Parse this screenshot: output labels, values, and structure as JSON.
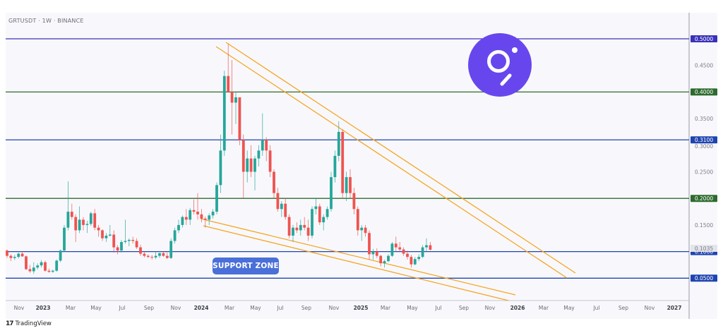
{
  "header": {
    "title": "GRTUSDT · 1W · BINANCE"
  },
  "annotation": {
    "support_zone_label": "SUPPORT ZONE"
  },
  "footer": {
    "brand_mark": "17",
    "brand_name": "TradingView"
  },
  "colors": {
    "up": "#26a69a",
    "down": "#ef5350",
    "level_purple": "#3a32b8",
    "level_green": "#2e6b2e",
    "level_blue": "#1f44b0",
    "trendline": "#f5a623",
    "logo_bg": "#6747ed",
    "current_price_tag": "#e4e5ea"
  },
  "chart_data": {
    "type": "candlestick",
    "title": "GRTUSDT · 1W · BINANCE",
    "xlabel": "",
    "ylabel": "",
    "ylim": [
      0.0,
      0.52
    ],
    "y_ticks": [
      "0.4500",
      "0.3500",
      "0.3000",
      "0.2500",
      "0.1500"
    ],
    "x_ticks": [
      "Nov",
      "2023",
      "Mar",
      "May",
      "Jul",
      "Sep",
      "Nov",
      "2024",
      "Mar",
      "May",
      "Jul",
      "Sep",
      "Nov",
      "2025",
      "Mar",
      "May",
      "Jul",
      "Sep",
      "Nov",
      "2026",
      "Mar",
      "May",
      "Jul",
      "Sep",
      "Nov",
      "2027"
    ],
    "horizontal_levels": [
      {
        "price": 0.5,
        "label": "0.5000",
        "color": "#3a32b8"
      },
      {
        "price": 0.4,
        "label": "0.4000",
        "color": "#2e6b2e"
      },
      {
        "price": 0.31,
        "label": "0.3100",
        "color": "#1f44b0"
      },
      {
        "price": 0.2,
        "label": "0.2000",
        "color": "#2e6b2e"
      },
      {
        "price": 0.1,
        "label": "0.1000",
        "color": "#1f44b0"
      },
      {
        "price": 0.05,
        "label": "0.0500",
        "color": "#1f44b0"
      }
    ],
    "current_price": {
      "value": 0.1035,
      "label": "0.1035"
    },
    "trendlines": [
      {
        "name": "descending-resistance-upper",
        "from": [
          "2024-03",
          0.495
        ],
        "to": [
          "2026-05",
          0.06
        ]
      },
      {
        "name": "descending-resistance-lower",
        "from": [
          "2024-03",
          0.475
        ],
        "to": [
          "2026-05",
          0.05
        ]
      },
      {
        "name": "descending-support-upper",
        "from": [
          "2024-01",
          0.165
        ],
        "to": [
          "2025-12",
          0.02
        ]
      },
      {
        "name": "descending-support-lower",
        "from": [
          "2024-01",
          0.15
        ],
        "to": [
          "2025-12",
          0.005
        ]
      }
    ],
    "candles_ohlc_approx": [
      [
        0.102,
        0.104,
        0.088,
        0.092
      ],
      [
        0.092,
        0.095,
        0.082,
        0.088
      ],
      [
        0.088,
        0.094,
        0.084,
        0.09
      ],
      [
        0.09,
        0.098,
        0.087,
        0.096
      ],
      [
        0.096,
        0.101,
        0.09,
        0.091
      ],
      [
        0.091,
        0.093,
        0.065,
        0.067
      ],
      [
        0.067,
        0.075,
        0.06,
        0.063
      ],
      [
        0.063,
        0.08,
        0.058,
        0.07
      ],
      [
        0.07,
        0.078,
        0.066,
        0.074
      ],
      [
        0.074,
        0.084,
        0.07,
        0.08
      ],
      [
        0.08,
        0.083,
        0.062,
        0.064
      ],
      [
        0.064,
        0.068,
        0.06,
        0.062
      ],
      [
        0.062,
        0.066,
        0.06,
        0.064
      ],
      [
        0.064,
        0.085,
        0.062,
        0.083
      ],
      [
        0.083,
        0.104,
        0.08,
        0.102
      ],
      [
        0.102,
        0.15,
        0.1,
        0.145
      ],
      [
        0.145,
        0.232,
        0.14,
        0.175
      ],
      [
        0.175,
        0.19,
        0.16,
        0.165
      ],
      [
        0.165,
        0.17,
        0.118,
        0.14
      ],
      [
        0.14,
        0.185,
        0.135,
        0.16
      ],
      [
        0.16,
        0.165,
        0.14,
        0.15
      ],
      [
        0.15,
        0.158,
        0.135,
        0.152
      ],
      [
        0.152,
        0.175,
        0.148,
        0.172
      ],
      [
        0.172,
        0.18,
        0.14,
        0.145
      ],
      [
        0.145,
        0.15,
        0.128,
        0.14
      ],
      [
        0.14,
        0.142,
        0.12,
        0.125
      ],
      [
        0.125,
        0.135,
        0.118,
        0.13
      ],
      [
        0.13,
        0.15,
        0.128,
        0.132
      ],
      [
        0.132,
        0.14,
        0.098,
        0.108
      ],
      [
        0.108,
        0.112,
        0.095,
        0.102
      ],
      [
        0.102,
        0.122,
        0.098,
        0.118
      ],
      [
        0.118,
        0.16,
        0.115,
        0.12
      ],
      [
        0.12,
        0.125,
        0.11,
        0.122
      ],
      [
        0.122,
        0.128,
        0.115,
        0.12
      ],
      [
        0.12,
        0.125,
        0.105,
        0.108
      ],
      [
        0.108,
        0.113,
        0.092,
        0.096
      ],
      [
        0.096,
        0.1,
        0.089,
        0.092
      ],
      [
        0.092,
        0.095,
        0.088,
        0.09
      ],
      [
        0.09,
        0.094,
        0.085,
        0.089
      ],
      [
        0.089,
        0.1,
        0.086,
        0.092
      ],
      [
        0.092,
        0.098,
        0.088,
        0.097
      ],
      [
        0.097,
        0.1,
        0.09,
        0.092
      ],
      [
        0.092,
        0.098,
        0.086,
        0.088
      ],
      [
        0.088,
        0.125,
        0.086,
        0.12
      ],
      [
        0.12,
        0.145,
        0.115,
        0.14
      ],
      [
        0.14,
        0.16,
        0.135,
        0.15
      ],
      [
        0.15,
        0.168,
        0.145,
        0.165
      ],
      [
        0.165,
        0.18,
        0.15,
        0.16
      ],
      [
        0.16,
        0.182,
        0.15,
        0.178
      ],
      [
        0.178,
        0.198,
        0.17,
        0.175
      ],
      [
        0.175,
        0.21,
        0.16,
        0.17
      ],
      [
        0.17,
        0.18,
        0.155,
        0.162
      ],
      [
        0.162,
        0.166,
        0.145,
        0.16
      ],
      [
        0.16,
        0.172,
        0.15,
        0.168
      ],
      [
        0.168,
        0.18,
        0.162,
        0.175
      ],
      [
        0.175,
        0.23,
        0.17,
        0.225
      ],
      [
        0.225,
        0.32,
        0.21,
        0.29
      ],
      [
        0.29,
        0.44,
        0.28,
        0.43
      ],
      [
        0.43,
        0.49,
        0.4,
        0.4
      ],
      [
        0.4,
        0.46,
        0.32,
        0.38
      ],
      [
        0.38,
        0.4,
        0.34,
        0.39
      ],
      [
        0.39,
        0.39,
        0.3,
        0.31
      ],
      [
        0.31,
        0.32,
        0.2,
        0.25
      ],
      [
        0.25,
        0.29,
        0.23,
        0.275
      ],
      [
        0.275,
        0.3,
        0.24,
        0.25
      ],
      [
        0.25,
        0.28,
        0.215,
        0.275
      ],
      [
        0.275,
        0.3,
        0.26,
        0.29
      ],
      [
        0.29,
        0.36,
        0.28,
        0.31
      ],
      [
        0.31,
        0.315,
        0.27,
        0.29
      ],
      [
        0.29,
        0.3,
        0.24,
        0.25
      ],
      [
        0.25,
        0.255,
        0.2,
        0.21
      ],
      [
        0.21,
        0.22,
        0.175,
        0.18
      ],
      [
        0.18,
        0.195,
        0.165,
        0.19
      ],
      [
        0.19,
        0.2,
        0.16,
        0.165
      ],
      [
        0.165,
        0.17,
        0.125,
        0.13
      ],
      [
        0.13,
        0.15,
        0.118,
        0.145
      ],
      [
        0.145,
        0.155,
        0.135,
        0.14
      ],
      [
        0.14,
        0.16,
        0.13,
        0.15
      ],
      [
        0.15,
        0.165,
        0.14,
        0.145
      ],
      [
        0.145,
        0.16,
        0.12,
        0.13
      ],
      [
        0.13,
        0.185,
        0.125,
        0.18
      ],
      [
        0.18,
        0.2,
        0.17,
        0.185
      ],
      [
        0.185,
        0.19,
        0.15,
        0.155
      ],
      [
        0.155,
        0.17,
        0.14,
        0.165
      ],
      [
        0.165,
        0.185,
        0.16,
        0.18
      ],
      [
        0.18,
        0.25,
        0.175,
        0.24
      ],
      [
        0.24,
        0.29,
        0.23,
        0.28
      ],
      [
        0.28,
        0.345,
        0.27,
        0.325
      ],
      [
        0.325,
        0.33,
        0.2,
        0.21
      ],
      [
        0.21,
        0.25,
        0.195,
        0.24
      ],
      [
        0.24,
        0.255,
        0.2,
        0.21
      ],
      [
        0.21,
        0.22,
        0.17,
        0.18
      ],
      [
        0.18,
        0.185,
        0.13,
        0.14
      ],
      [
        0.14,
        0.15,
        0.12,
        0.145
      ],
      [
        0.145,
        0.15,
        0.128,
        0.135
      ],
      [
        0.135,
        0.14,
        0.085,
        0.095
      ],
      [
        0.095,
        0.105,
        0.085,
        0.1
      ],
      [
        0.1,
        0.106,
        0.088,
        0.092
      ],
      [
        0.092,
        0.094,
        0.072,
        0.078
      ],
      [
        0.078,
        0.085,
        0.07,
        0.082
      ],
      [
        0.082,
        0.095,
        0.08,
        0.092
      ],
      [
        0.092,
        0.118,
        0.09,
        0.115
      ],
      [
        0.115,
        0.128,
        0.1,
        0.108
      ],
      [
        0.108,
        0.118,
        0.1,
        0.104
      ],
      [
        0.104,
        0.108,
        0.092,
        0.096
      ],
      [
        0.096,
        0.102,
        0.085,
        0.09
      ],
      [
        0.09,
        0.094,
        0.07,
        0.076
      ],
      [
        0.076,
        0.09,
        0.074,
        0.086
      ],
      [
        0.086,
        0.095,
        0.082,
        0.09
      ],
      [
        0.09,
        0.112,
        0.088,
        0.108
      ],
      [
        0.108,
        0.125,
        0.1,
        0.112
      ],
      [
        0.112,
        0.118,
        0.102,
        0.1035
      ]
    ]
  }
}
